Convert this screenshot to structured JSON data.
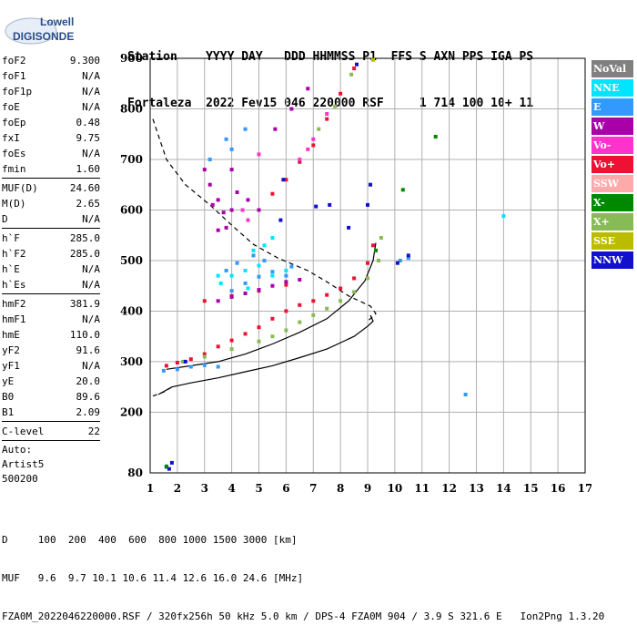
{
  "logo": {
    "line1": "Lowell",
    "line2": "DIGISONDE"
  },
  "header": {
    "line1": "Station    YYYY DAY   DDD HHMMSS P1  FFS S AXN PPS IGA PS",
    "line2": "Fortaleza  2022 Fev15 046 220000 RSF     1 714 100 10+ 11"
  },
  "params_group1": [
    {
      "name": "foF2",
      "value": "9.300"
    },
    {
      "name": "foF1",
      "value": "N/A"
    },
    {
      "name": "foF1p",
      "value": "N/A"
    },
    {
      "name": "foE",
      "value": "N/A"
    },
    {
      "name": "foEp",
      "value": "0.48"
    },
    {
      "name": "fxI",
      "value": "9.75"
    },
    {
      "name": "foEs",
      "value": "N/A"
    },
    {
      "name": "fmin",
      "value": "1.60"
    }
  ],
  "params_group2": [
    {
      "name": "MUF(D)",
      "value": "24.60"
    },
    {
      "name": "M(D)",
      "value": "2.65"
    },
    {
      "name": "D",
      "value": "N/A"
    }
  ],
  "params_group3": [
    {
      "name": "h`F",
      "value": "285.0"
    },
    {
      "name": "h`F2",
      "value": "285.0"
    },
    {
      "name": "h`E",
      "value": "N/A"
    },
    {
      "name": "h`Es",
      "value": "N/A"
    }
  ],
  "params_group4": [
    {
      "name": "hmF2",
      "value": "381.9"
    },
    {
      "name": "hmF1",
      "value": "N/A"
    },
    {
      "name": "hmE",
      "value": "110.0"
    },
    {
      "name": "yF2",
      "value": "91.6"
    },
    {
      "name": "yF1",
      "value": "N/A"
    },
    {
      "name": "yE",
      "value": "20.0"
    },
    {
      "name": "B0",
      "value": "89.6"
    },
    {
      "name": "B1",
      "value": "2.09"
    }
  ],
  "params_group5": [
    {
      "name": "C-level",
      "value": "22"
    }
  ],
  "autoscale": {
    "line1": "Auto:",
    "line2": "Artist5",
    "line3": "500200"
  },
  "legend": [
    {
      "label": "NoVal",
      "color": "#808080"
    },
    {
      "label": "NNE",
      "color": "#00e5ff"
    },
    {
      "label": "E",
      "color": "#3399ff"
    },
    {
      "label": "W",
      "color": "#aa00aa"
    },
    {
      "label": "Vo-",
      "color": "#ff33cc"
    },
    {
      "label": "Vo+",
      "color": "#ee1133"
    },
    {
      "label": "SSW",
      "color": "#ffaaaa"
    },
    {
      "label": "X-",
      "color": "#008800"
    },
    {
      "label": "X+",
      "color": "#88bb55"
    },
    {
      "label": "SSE",
      "color": "#bbbb00"
    },
    {
      "label": "NNW",
      "color": "#1111cc"
    }
  ],
  "footer": {
    "line1": "D     100  200  400  600  800 1000 1500 3000 [km]",
    "line2": "MUF   9.6  9.7 10.1 10.6 11.4 12.6 16.0 24.6 [MHz]",
    "line3": "FZA0M_2022046220000.RSF / 320fx256h 50 kHz 5.0 km / DPS-4 FZA0M 904 / 3.9 S 321.6 E   Ion2Png 1.3.20"
  },
  "chart_data": {
    "type": "scatter",
    "x_ticks": [
      "1",
      "2",
      "3",
      "4",
      "5",
      "6",
      "7",
      "8",
      "9",
      "10",
      "11",
      "12",
      "13",
      "14",
      "15",
      "16",
      "17"
    ],
    "y_ticks": [
      "80",
      "200",
      "300",
      "400",
      "500",
      "600",
      "700",
      "800",
      "900"
    ],
    "xlim": [
      1,
      17
    ],
    "ylim": [
      80,
      900
    ],
    "grid": true,
    "legend_position": "right",
    "series": [
      {
        "name": "Vo+",
        "color": "#ee1133",
        "points": [
          [
            1.6,
            292
          ],
          [
            2.0,
            298
          ],
          [
            2.5,
            305
          ],
          [
            3.0,
            315
          ],
          [
            3.5,
            330
          ],
          [
            4.0,
            342
          ],
          [
            4.5,
            355
          ],
          [
            5.0,
            368
          ],
          [
            5.5,
            385
          ],
          [
            6.0,
            400
          ],
          [
            6.5,
            412
          ],
          [
            7.0,
            420
          ],
          [
            7.5,
            432
          ],
          [
            8.0,
            445
          ],
          [
            8.5,
            465
          ],
          [
            9.0,
            495
          ],
          [
            9.2,
            530
          ],
          [
            5.5,
            632
          ],
          [
            6.0,
            660
          ],
          [
            6.5,
            695
          ],
          [
            7.0,
            728
          ],
          [
            7.5,
            780
          ],
          [
            8.0,
            830
          ],
          [
            8.5,
            880
          ],
          [
            3.0,
            420
          ],
          [
            4.0,
            430
          ],
          [
            5.0,
            440
          ],
          [
            6.0,
            452
          ]
        ]
      },
      {
        "name": "X+",
        "color": "#88bb55",
        "points": [
          [
            2.2,
            300
          ],
          [
            3.0,
            310
          ],
          [
            4.0,
            325
          ],
          [
            5.0,
            340
          ],
          [
            5.5,
            350
          ],
          [
            6.0,
            362
          ],
          [
            6.5,
            378
          ],
          [
            7.0,
            392
          ],
          [
            7.5,
            405
          ],
          [
            8.0,
            420
          ],
          [
            8.5,
            438
          ],
          [
            9.0,
            465
          ],
          [
            9.4,
            500
          ],
          [
            9.5,
            545
          ],
          [
            7.2,
            760
          ],
          [
            7.8,
            805
          ],
          [
            8.4,
            868
          ]
        ]
      },
      {
        "name": "W",
        "color": "#aa00aa",
        "points": [
          [
            3.0,
            680
          ],
          [
            3.2,
            650
          ],
          [
            3.5,
            620
          ],
          [
            3.7,
            595
          ],
          [
            3.8,
            565
          ],
          [
            4.0,
            600
          ],
          [
            4.2,
            635
          ],
          [
            3.5,
            560
          ],
          [
            4.0,
            680
          ],
          [
            3.3,
            610
          ],
          [
            3.5,
            420
          ],
          [
            4.0,
            428
          ],
          [
            4.5,
            435
          ],
          [
            5.0,
            442
          ],
          [
            5.5,
            450
          ],
          [
            6.0,
            458
          ],
          [
            6.5,
            462
          ],
          [
            5.6,
            760
          ],
          [
            6.2,
            800
          ],
          [
            6.8,
            840
          ],
          [
            4.6,
            620
          ],
          [
            5.0,
            600
          ]
        ]
      },
      {
        "name": "Vo-",
        "color": "#ff33cc",
        "points": [
          [
            6.5,
            700
          ],
          [
            7.0,
            740
          ],
          [
            5.0,
            710
          ],
          [
            4.4,
            600
          ],
          [
            4.6,
            580
          ],
          [
            6.8,
            720
          ],
          [
            7.5,
            790
          ]
        ]
      },
      {
        "name": "E",
        "color": "#3399ff",
        "points": [
          [
            1.5,
            282
          ],
          [
            2.0,
            285
          ],
          [
            2.5,
            290
          ],
          [
            3.0,
            293
          ],
          [
            3.5,
            290
          ],
          [
            4.0,
            440
          ],
          [
            4.5,
            455
          ],
          [
            5.0,
            468
          ],
          [
            5.5,
            478
          ],
          [
            6.0,
            470
          ],
          [
            4.2,
            495
          ],
          [
            4.8,
            510
          ],
          [
            5.2,
            500
          ],
          [
            3.8,
            480
          ],
          [
            6.2,
            488
          ],
          [
            3.2,
            700
          ],
          [
            3.8,
            740
          ],
          [
            4.5,
            760
          ],
          [
            4.0,
            720
          ],
          [
            12.6,
            235
          ],
          [
            10.2,
            500
          ],
          [
            10.5,
            505
          ]
        ]
      },
      {
        "name": "NNE",
        "color": "#00e5ff",
        "points": [
          [
            3.5,
            470
          ],
          [
            4.0,
            470
          ],
          [
            4.5,
            480
          ],
          [
            5.0,
            490
          ],
          [
            5.5,
            470
          ],
          [
            6.0,
            480
          ],
          [
            4.8,
            520
          ],
          [
            5.2,
            530
          ],
          [
            3.6,
            455
          ],
          [
            4.6,
            445
          ],
          [
            14.0,
            588
          ],
          [
            5.5,
            545
          ]
        ]
      },
      {
        "name": "NNW",
        "color": "#1111cc",
        "points": [
          [
            1.6,
            92
          ],
          [
            1.8,
            100
          ],
          [
            1.7,
            88
          ],
          [
            5.8,
            580
          ],
          [
            5.9,
            660
          ],
          [
            7.1,
            607
          ],
          [
            7.6,
            610
          ],
          [
            8.3,
            565
          ],
          [
            9.1,
            650
          ],
          [
            9.0,
            610
          ],
          [
            10.1,
            495
          ],
          [
            10.5,
            510
          ],
          [
            2.3,
            300
          ],
          [
            8.6,
            888
          ]
        ]
      },
      {
        "name": "X-",
        "color": "#008800",
        "points": [
          [
            11.5,
            745
          ],
          [
            10.3,
            640
          ],
          [
            9.3,
            520
          ],
          [
            1.6,
            93
          ]
        ]
      },
      {
        "name": "SSE",
        "color": "#bbbb00",
        "points": [
          [
            9.2,
            897
          ]
        ]
      }
    ],
    "curves": [
      {
        "name": "profile",
        "style": "solid",
        "points": [
          [
            1.3,
            235
          ],
          [
            1.8,
            250
          ],
          [
            2.5,
            258
          ],
          [
            3.5,
            268
          ],
          [
            4.5,
            280
          ],
          [
            5.5,
            292
          ],
          [
            6.5,
            308
          ],
          [
            7.5,
            325
          ],
          [
            8.5,
            350
          ],
          [
            9.0,
            370
          ],
          [
            9.2,
            380
          ],
          [
            9.1,
            392
          ]
        ]
      },
      {
        "name": "trace",
        "style": "solid",
        "points": [
          [
            1.6,
            285
          ],
          [
            2.5,
            292
          ],
          [
            3.5,
            300
          ],
          [
            4.5,
            315
          ],
          [
            5.5,
            335
          ],
          [
            6.5,
            358
          ],
          [
            7.5,
            385
          ],
          [
            8.3,
            420
          ],
          [
            8.9,
            460
          ],
          [
            9.2,
            500
          ],
          [
            9.3,
            535
          ]
        ]
      },
      {
        "name": "MUF",
        "style": "dashed",
        "points": [
          [
            1.1,
            780
          ],
          [
            1.6,
            700
          ],
          [
            2.3,
            650
          ],
          [
            3.2,
            610
          ],
          [
            4.0,
            570
          ],
          [
            4.8,
            532
          ],
          [
            5.7,
            505
          ],
          [
            6.8,
            480
          ],
          [
            7.5,
            458
          ],
          [
            8.3,
            430
          ],
          [
            9.1,
            410
          ],
          [
            9.3,
            395
          ],
          [
            9.0,
            380
          ]
        ]
      },
      {
        "name": "MUF-low",
        "style": "dashed",
        "points": [
          [
            1.1,
            232
          ],
          [
            1.5,
            240
          ],
          [
            1.8,
            250
          ]
        ]
      }
    ]
  }
}
